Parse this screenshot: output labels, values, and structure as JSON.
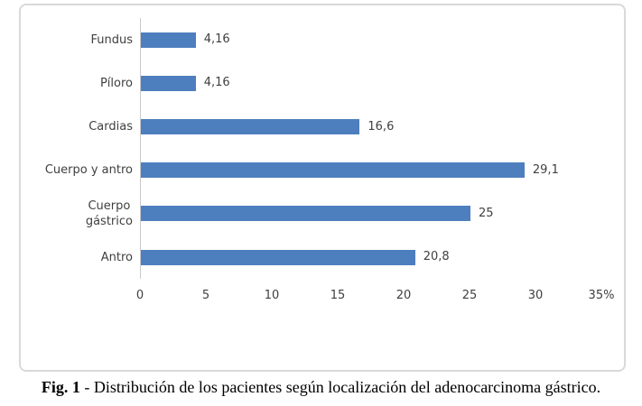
{
  "figure": {
    "caption_prefix": "Fig. 1",
    "caption_separator": " - ",
    "caption_text": "Distribución de los pacientes según localización del adenocarcinoma gástrico."
  },
  "colors": {
    "bar": "#4d7ebe",
    "axis_line": "#c9c9c9",
    "chart_border": "#d9d9d9",
    "label_text": "#3f3f3f"
  },
  "chart_data": {
    "type": "bar",
    "orientation": "horizontal",
    "title": "",
    "categories": [
      "Fundus",
      "Píloro",
      "Cardias",
      "Cuerpo y antro",
      "Cuerpo gástrico",
      "Antro"
    ],
    "category_display": [
      "Fundus",
      "Píloro",
      "Cardias",
      "Cuerpo y antro",
      "Cuerpo\ngástrico",
      "Antro"
    ],
    "values": [
      4.16,
      4.16,
      16.6,
      29.1,
      25,
      20.8
    ],
    "value_labels": [
      "4,16",
      "4,16",
      "16,6",
      "29,1",
      "25",
      "20,8"
    ],
    "xlim": [
      0,
      35
    ],
    "xtick_values": [
      0,
      5,
      10,
      15,
      20,
      25,
      30,
      35
    ],
    "xtick_labels": [
      "0",
      "5",
      "10",
      "15",
      "20",
      "25",
      "30",
      "35%"
    ],
    "xlabel": "",
    "ylabel": "",
    "grid": false,
    "legend": false
  }
}
